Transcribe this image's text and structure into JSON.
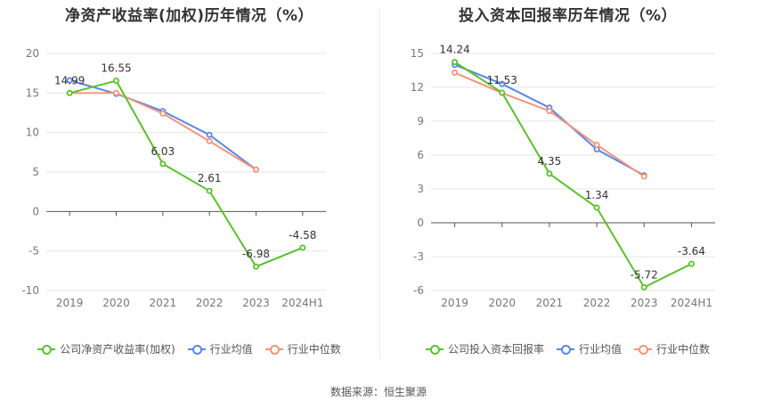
{
  "source_label": "数据来源：恒生聚源",
  "legend": [
    {
      "key": "company",
      "color": "#5cc02e"
    },
    {
      "key": "avg",
      "color": "#5b86e5"
    },
    {
      "key": "median",
      "color": "#f2957a"
    }
  ],
  "chart_data": [
    {
      "type": "line",
      "title": "净资产收益率(加权)历年情况（%）",
      "categories": [
        "2019",
        "2020",
        "2021",
        "2022",
        "2023",
        "2024H1"
      ],
      "ylim": [
        -10,
        20
      ],
      "yticks": [
        -10,
        -5,
        0,
        5,
        10,
        15,
        20
      ],
      "grid": true,
      "legend_position": "bottom",
      "series": [
        {
          "name": "公司净资产收益率(加权)",
          "color": "#5cc02e",
          "values": [
            14.99,
            16.55,
            6.03,
            2.61,
            -6.98,
            -4.58
          ],
          "labels": [
            "14.99",
            "16.55",
            "6.03",
            "2.61",
            "-6.98",
            "-4.58"
          ]
        },
        {
          "name": "行业均值",
          "color": "#5b86e5",
          "values": [
            16.6,
            14.9,
            12.7,
            9.7,
            5.3,
            null
          ]
        },
        {
          "name": "行业中位数",
          "color": "#f2957a",
          "values": [
            15.0,
            15.0,
            12.4,
            8.9,
            5.3,
            null
          ]
        }
      ]
    },
    {
      "type": "line",
      "title": "投入资本回报率历年情况（%）",
      "categories": [
        "2019",
        "2020",
        "2021",
        "2022",
        "2023",
        "2024H1"
      ],
      "ylim": [
        -6,
        15
      ],
      "yticks": [
        -6,
        -3,
        0,
        3,
        6,
        9,
        12,
        15
      ],
      "grid": true,
      "legend_position": "bottom",
      "series": [
        {
          "name": "公司投入资本回报率",
          "color": "#5cc02e",
          "values": [
            14.24,
            11.53,
            4.35,
            1.34,
            -5.72,
            -3.64
          ],
          "labels": [
            "14.24",
            "11.53",
            "4.35",
            "1.34",
            "-5.72",
            "-3.64"
          ]
        },
        {
          "name": "行业均值",
          "color": "#5b86e5",
          "values": [
            14.0,
            12.3,
            10.2,
            6.5,
            4.2,
            null
          ]
        },
        {
          "name": "行业中位数",
          "color": "#f2957a",
          "values": [
            13.3,
            11.5,
            9.9,
            6.9,
            4.1,
            null
          ]
        }
      ]
    }
  ]
}
